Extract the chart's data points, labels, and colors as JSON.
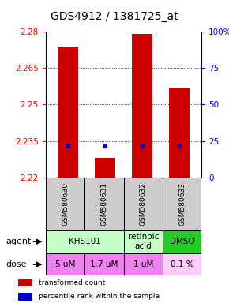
{
  "title": "GDS4912 / 1381725_at",
  "samples": [
    "GSM580630",
    "GSM580631",
    "GSM580632",
    "GSM580633"
  ],
  "bar_values": [
    2.274,
    2.228,
    2.279,
    2.257
  ],
  "bar_bottom": 2.22,
  "blue_values": [
    2.233,
    2.233,
    2.233,
    2.233
  ],
  "ymin": 2.22,
  "ymax": 2.28,
  "yticks_left": [
    2.22,
    2.235,
    2.25,
    2.265,
    2.28
  ],
  "yticks_right": [
    0,
    25,
    50,
    75,
    100
  ],
  "bar_color": "#cc0000",
  "blue_color": "#0000cc",
  "agent_data": [
    {
      "cols": [
        0,
        1
      ],
      "label": "KHS101",
      "color": "#c8ffc8"
    },
    {
      "cols": [
        2
      ],
      "label": "retinoic\nacid",
      "color": "#c8ffc8"
    },
    {
      "cols": [
        3
      ],
      "label": "DMSO",
      "color": "#22cc22"
    }
  ],
  "doses": [
    "5 uM",
    "1.7 uM",
    "1 uM",
    "0.1 %"
  ],
  "dose_color": "#ee82ee",
  "dose_colors": [
    "#ee82ee",
    "#ee82ee",
    "#ee82ee",
    "#ffccff"
  ],
  "sample_bg": "#cccccc",
  "title_fontsize": 10,
  "tick_fontsize": 7.5,
  "table_fontsize": 7.5
}
